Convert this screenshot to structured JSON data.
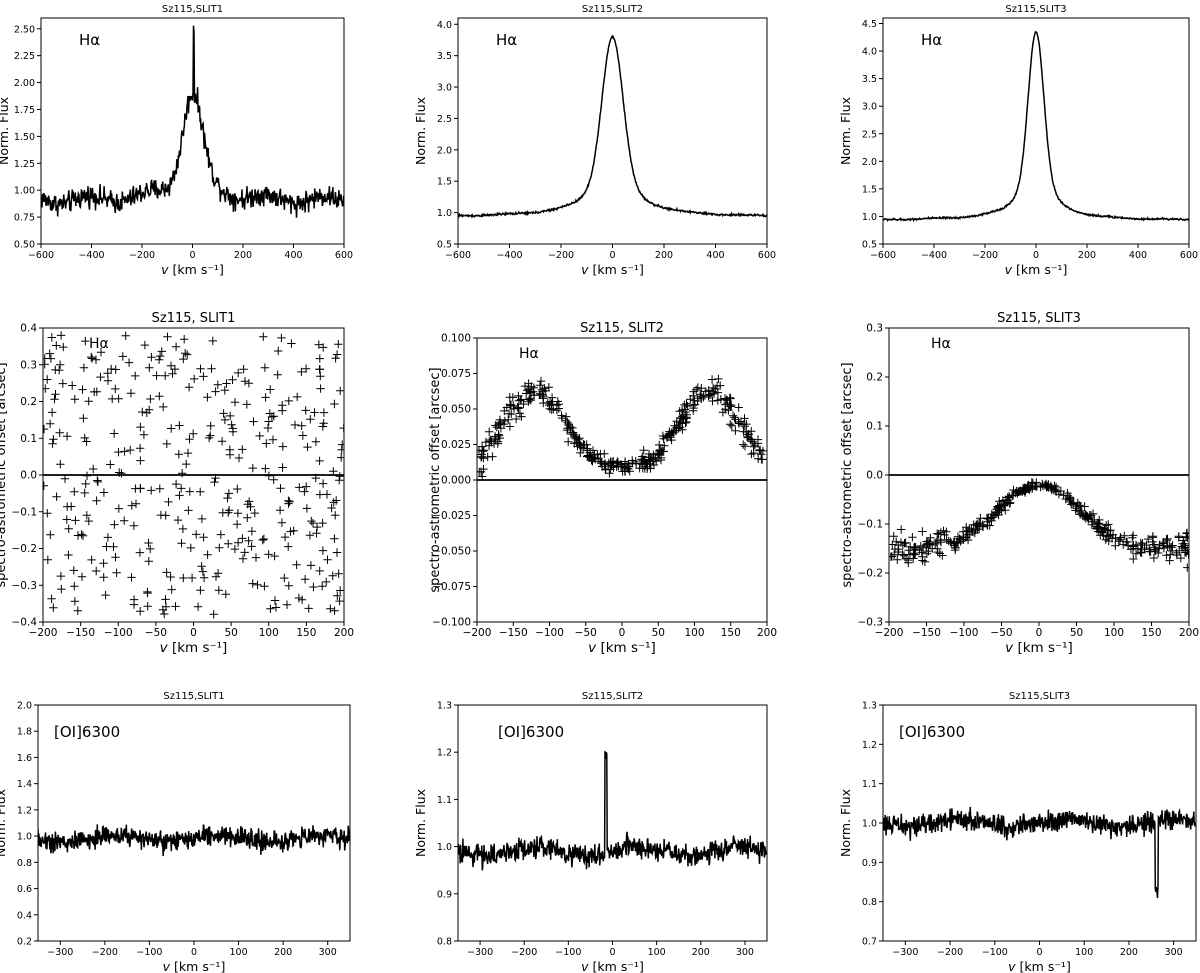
{
  "figure": {
    "background": "#ffffff",
    "line_color": "#000000"
  },
  "chart_data": [
    {
      "id": "p11",
      "type": "line",
      "title": "Sz115,SLIT1",
      "annotation": "Hα",
      "xlabel": "v [km s⁻¹]",
      "ylabel": "Norm. Flux",
      "xlim": [
        -600,
        600
      ],
      "ylim": [
        0.5,
        2.6
      ],
      "xticks": [
        -600,
        -400,
        -200,
        0,
        200,
        400,
        600
      ],
      "yticks": [
        0.5,
        0.75,
        1.0,
        1.25,
        1.5,
        1.75,
        2.0,
        2.25,
        2.5
      ],
      "ytick_labels": [
        "0.50",
        "0.75",
        "1.00",
        "1.25",
        "1.50",
        "1.75",
        "2.00",
        "2.25",
        "2.50"
      ],
      "profile": {
        "base": 0.9,
        "peak": 1.9,
        "width": 38,
        "noise": 0.15,
        "spike_x": 5,
        "spike_y": 2.5,
        "n": 600
      }
    },
    {
      "id": "p12",
      "type": "line",
      "title": "Sz115,SLIT2",
      "annotation": "Hα",
      "xlabel": "v [km s⁻¹]",
      "ylabel": "Norm. Flux",
      "xlim": [
        -600,
        600
      ],
      "ylim": [
        0.5,
        4.1
      ],
      "xticks": [
        -600,
        -400,
        -200,
        0,
        200,
        400,
        600
      ],
      "yticks": [
        0.5,
        1.0,
        1.5,
        2.0,
        2.5,
        3.0,
        3.5,
        4.0
      ],
      "ytick_labels": [
        "0.5",
        "1.0",
        "1.5",
        "2.0",
        "2.5",
        "3.0",
        "3.5",
        "4.0"
      ],
      "profile": {
        "base": 0.93,
        "peak": 3.8,
        "width": 40,
        "noise": 0.025,
        "n": 600
      }
    },
    {
      "id": "p13",
      "type": "line",
      "title": "Sz115,SLIT3",
      "annotation": "Hα",
      "xlabel": "v [km s⁻¹]",
      "ylabel": "Norm. Flux",
      "xlim": [
        -600,
        600
      ],
      "ylim": [
        0.5,
        4.6
      ],
      "xticks": [
        -600,
        -400,
        -200,
        0,
        200,
        400,
        600
      ],
      "yticks": [
        0.5,
        1.0,
        1.5,
        2.0,
        2.5,
        3.0,
        3.5,
        4.0,
        4.5
      ],
      "ytick_labels": [
        "0.5",
        "1.0",
        "1.5",
        "2.0",
        "2.5",
        "3.0",
        "3.5",
        "4.0",
        "4.5"
      ],
      "profile": {
        "base": 0.93,
        "peak": 4.35,
        "width": 30,
        "noise": 0.025,
        "n": 600
      }
    },
    {
      "id": "p21",
      "type": "scatter",
      "title": "Sz115, SLIT1",
      "annotation": "Hα",
      "xlabel": "v [km s⁻¹]",
      "ylabel": "spectro-astrometric offset [arcsec]",
      "xlim": [
        -200,
        200
      ],
      "ylim": [
        -0.4,
        0.4
      ],
      "zero_line": true,
      "xticks": [
        -200,
        -150,
        -100,
        -50,
        0,
        50,
        100,
        150,
        200
      ],
      "yticks": [
        -0.4,
        -0.3,
        -0.2,
        -0.1,
        0.0,
        0.1,
        0.2,
        0.3,
        0.4
      ],
      "ytick_labels": [
        "−0.4",
        "−0.3",
        "−0.2",
        "−0.1",
        "0.0",
        "0.1",
        "0.2",
        "0.3",
        "0.4"
      ],
      "profile": {
        "mode": "noise",
        "n": 380,
        "spread": 0.4
      }
    },
    {
      "id": "p22",
      "type": "scatter",
      "title": "Sz115, SLIT2",
      "annotation": "Hα",
      "xlabel": "v [km s⁻¹]",
      "ylabel": "spectro-astrometric offset [arcsec]",
      "xlim": [
        -200,
        200
      ],
      "ylim": [
        -0.1,
        0.1
      ],
      "zero_line": true,
      "xticks": [
        -200,
        -150,
        -100,
        -50,
        0,
        50,
        100,
        150,
        200
      ],
      "yticks": [
        -0.1,
        -0.075,
        -0.05,
        -0.025,
        0.0,
        0.025,
        0.05,
        0.075,
        0.1
      ],
      "ytick_labels": [
        "−0.100",
        "−0.075",
        "−0.050",
        "−0.025",
        "0.000",
        "0.025",
        "0.050",
        "0.075",
        "0.100"
      ],
      "profile": {
        "mode": "double",
        "n": 380,
        "amp": 0.055,
        "sep": 120,
        "floor": 0.008,
        "spread": 0.012
      }
    },
    {
      "id": "p23",
      "type": "scatter",
      "title": "Sz115, SLIT3",
      "annotation": "Hα",
      "xlabel": "v [km s⁻¹]",
      "ylabel": "spectro-astrometric offset [arcsec]",
      "xlim": [
        -200,
        200
      ],
      "ylim": [
        -0.3,
        0.3
      ],
      "zero_line": true,
      "xticks": [
        -200,
        -150,
        -100,
        -50,
        0,
        50,
        100,
        150,
        200
      ],
      "yticks": [
        -0.3,
        -0.2,
        -0.1,
        0.0,
        0.1,
        0.2,
        0.3
      ],
      "ytick_labels": [
        "−0.3",
        "−0.2",
        "−0.1",
        "0.0",
        "0.1",
        "0.2",
        "0.3"
      ],
      "profile": {
        "mode": "hump",
        "n": 380,
        "top": -0.02,
        "low": -0.15,
        "spread": 0.03
      }
    },
    {
      "id": "p31",
      "type": "line",
      "title": "Sz115,SLIT1",
      "annotation": "[OI]6300",
      "xlabel": "v [km s⁻¹]",
      "ylabel": "Norm. Flux",
      "xlim": [
        -350,
        350
      ],
      "ylim": [
        0.2,
        2.0
      ],
      "xticks": [
        -300,
        -200,
        -100,
        0,
        100,
        200,
        300
      ],
      "yticks": [
        0.2,
        0.4,
        0.6,
        0.8,
        1.0,
        1.2,
        1.4,
        1.6,
        1.8,
        2.0
      ],
      "ytick_labels": [
        "0.2",
        "0.4",
        "0.6",
        "0.8",
        "1.0",
        "1.2",
        "1.4",
        "1.6",
        "1.8",
        "2.0"
      ],
      "profile": {
        "base": 0.98,
        "peak": 0,
        "width": 10,
        "noise": 0.12,
        "n": 700
      }
    },
    {
      "id": "p32",
      "type": "line",
      "title": "Sz115,SLIT2",
      "annotation": "[OI]6300",
      "xlabel": "v [km s⁻¹]",
      "ylabel": "Norm. Flux",
      "xlim": [
        -350,
        350
      ],
      "ylim": [
        0.8,
        1.3
      ],
      "xticks": [
        -300,
        -200,
        -100,
        0,
        100,
        200,
        300
      ],
      "yticks": [
        0.8,
        0.9,
        1.0,
        1.1,
        1.2,
        1.3
      ],
      "ytick_labels": [
        "0.8",
        "0.9",
        "1.0",
        "1.1",
        "1.2",
        "1.3"
      ],
      "profile": {
        "base": 0.99,
        "peak": 0,
        "width": 10,
        "noise": 0.035,
        "spike_x": -15,
        "spike_y": 1.2,
        "n": 700
      }
    },
    {
      "id": "p33",
      "type": "line",
      "title": "Sz115,SLIT3",
      "annotation": "[OI]6300",
      "xlabel": "v [km s⁻¹]",
      "ylabel": "Norm. Flux",
      "xlim": [
        -350,
        350
      ],
      "ylim": [
        0.7,
        1.3
      ],
      "xticks": [
        -300,
        -200,
        -100,
        0,
        100,
        200,
        300
      ],
      "yticks": [
        0.7,
        0.8,
        0.9,
        1.0,
        1.1,
        1.2,
        1.3
      ],
      "ytick_labels": [
        "0.7",
        "0.8",
        "0.9",
        "1.0",
        "1.1",
        "1.2",
        "1.3"
      ],
      "profile": {
        "base": 1.0,
        "peak": 0,
        "width": 10,
        "noise": 0.04,
        "dip_x": 262,
        "dip_y": 0.82,
        "n": 700
      }
    }
  ]
}
